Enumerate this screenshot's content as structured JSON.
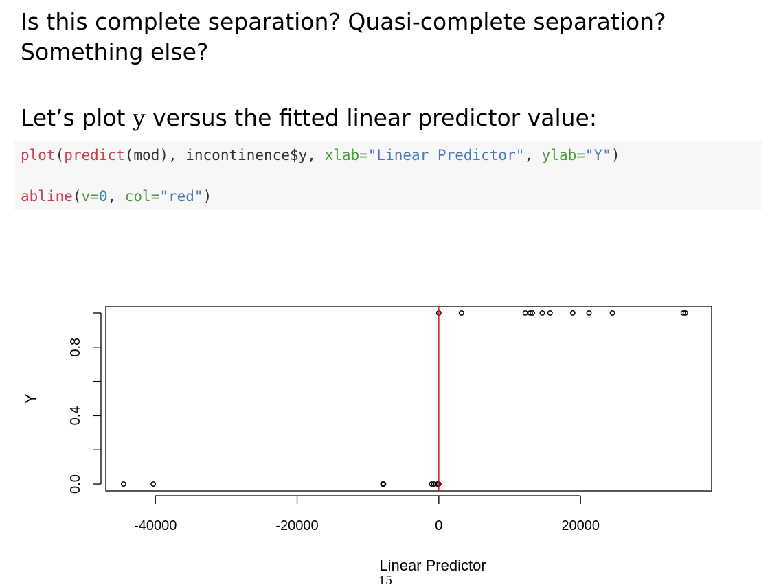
{
  "slide": {
    "question": "Is this complete separation? Quasi-complete separation? Something else?",
    "lead_before": "Let’s plot ",
    "lead_var": "y",
    "lead_after": " versus the fitted linear predictor value:",
    "page_number": "15"
  },
  "code": {
    "line1": [
      {
        "text": "plot",
        "kind": "fn"
      },
      {
        "text": "(",
        "kind": "plain"
      },
      {
        "text": "predict",
        "kind": "fn"
      },
      {
        "text": "(mod), incontinence",
        "kind": "plain"
      },
      {
        "text": "$",
        "kind": "plain"
      },
      {
        "text": "y, ",
        "kind": "plain"
      },
      {
        "text": "xlab=",
        "kind": "arg"
      },
      {
        "text": "\"Linear Predictor\"",
        "kind": "str"
      },
      {
        "text": ", ",
        "kind": "plain"
      },
      {
        "text": "ylab=",
        "kind": "arg"
      },
      {
        "text": "\"Y\"",
        "kind": "str"
      },
      {
        "text": ")",
        "kind": "plain"
      }
    ],
    "line2": [
      {
        "text": "abline",
        "kind": "fn"
      },
      {
        "text": "(",
        "kind": "plain"
      },
      {
        "text": "v=",
        "kind": "arg"
      },
      {
        "text": "0",
        "kind": "num"
      },
      {
        "text": ", ",
        "kind": "plain"
      },
      {
        "text": "col=",
        "kind": "arg"
      },
      {
        "text": "\"red\"",
        "kind": "str"
      },
      {
        "text": ")",
        "kind": "plain"
      }
    ]
  },
  "colors": {
    "refline": "#e0161b",
    "axis": "#000000"
  },
  "chart_data": {
    "type": "scatter",
    "xlabel": "Linear Predictor",
    "ylabel": "Y",
    "xlim": [
      -47000,
      38500
    ],
    "ylim": [
      -0.04,
      1.04
    ],
    "xticks": [
      -40000,
      -20000,
      0,
      20000
    ],
    "xtick_labels": [
      "-40000",
      "-20000",
      "0",
      "20000"
    ],
    "yticks": [
      0.0,
      0.2,
      0.4,
      0.6,
      0.8,
      1.0
    ],
    "ytick_labels": [
      "0.0",
      "",
      "0.4",
      "",
      "0.8",
      ""
    ],
    "vline": {
      "x": 0,
      "color": "red"
    },
    "points": [
      {
        "x": -44500,
        "y": 0
      },
      {
        "x": -40300,
        "y": 0
      },
      {
        "x": -7900,
        "y": 0
      },
      {
        "x": -7800,
        "y": 0
      },
      {
        "x": -1000,
        "y": 0
      },
      {
        "x": -700,
        "y": 0
      },
      {
        "x": -200,
        "y": 0
      },
      {
        "x": 0,
        "y": 0
      },
      {
        "x": 0,
        "y": 1
      },
      {
        "x": 3200,
        "y": 1
      },
      {
        "x": 12200,
        "y": 1
      },
      {
        "x": 12900,
        "y": 1
      },
      {
        "x": 13200,
        "y": 1
      },
      {
        "x": 14600,
        "y": 1
      },
      {
        "x": 15700,
        "y": 1
      },
      {
        "x": 18900,
        "y": 1
      },
      {
        "x": 21200,
        "y": 1
      },
      {
        "x": 24500,
        "y": 1
      },
      {
        "x": 34500,
        "y": 1
      },
      {
        "x": 34800,
        "y": 1
      }
    ]
  }
}
